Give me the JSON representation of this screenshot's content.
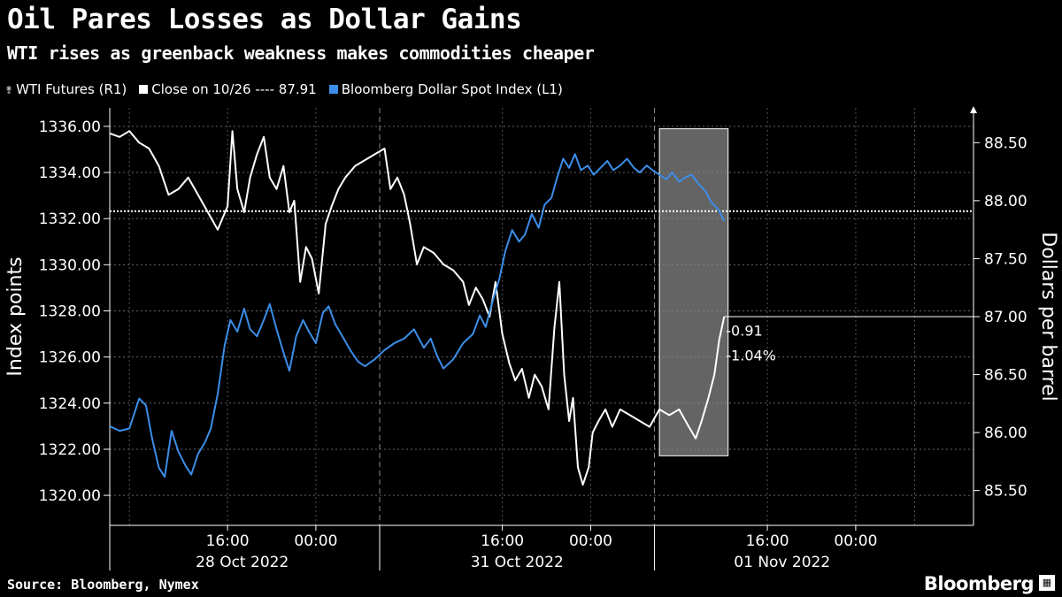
{
  "chart_data": {
    "type": "line",
    "title": "Oil Pares Losses as Dollar Gains",
    "subtitle": "WTI rises as greenback weakness makes commodities cheaper",
    "source": "Source: Bloomberg, Nymex",
    "brand": "Bloomberg",
    "legend": {
      "placement": "top-left",
      "entries": [
        {
          "label": "WTI Futures (R1)",
          "color": "#ffffff"
        },
        {
          "label": "Close on 10/26 ---- 87.91",
          "color": "#ffffff"
        },
        {
          "label": "Bloomberg Dollar Spot Index (L1)",
          "color": "#3b8ee8"
        }
      ]
    },
    "left_axis": {
      "label": "Index points",
      "ylim": [
        1318.7,
        1336.8
      ],
      "ticks": [
        "1336.00",
        "1334.00",
        "1332.00",
        "1330.00",
        "1328.00",
        "1326.00",
        "1324.00",
        "1322.00",
        "1320.00"
      ],
      "tick_values": [
        1336,
        1334,
        1332,
        1330,
        1328,
        1326,
        1324,
        1322,
        1320
      ]
    },
    "right_axis": {
      "label": "Dollars per barrel",
      "ylim": [
        85.2,
        88.8
      ],
      "ticks": [
        "88.50",
        "88.00",
        "87.50",
        "87.00",
        "86.50",
        "86.00",
        "85.50"
      ],
      "tick_values": [
        88.5,
        88.0,
        87.5,
        87.0,
        86.5,
        86.0,
        85.5
      ]
    },
    "x_axis": {
      "xlim": [
        0,
        88
      ],
      "tick_labels": [
        {
          "t": 12,
          "label": "16:00"
        },
        {
          "t": 21,
          "label": "00:00"
        },
        {
          "t": 40,
          "label": "16:00"
        },
        {
          "t": 49,
          "label": "00:00"
        },
        {
          "t": 67,
          "label": "16:00"
        },
        {
          "t": 76,
          "label": "00:00"
        }
      ],
      "day_labels": [
        {
          "t": 13.5,
          "label": "28 Oct 2022"
        },
        {
          "t": 41.5,
          "label": "31 Oct 2022"
        },
        {
          "t": 68.5,
          "label": "01 Nov 2022"
        }
      ],
      "day_separators": [
        27.5,
        55.5
      ],
      "grid_dashed_at": [
        2,
        12,
        21,
        27.5,
        40,
        49,
        55.5,
        67,
        76,
        82
      ]
    },
    "grid": true,
    "reference_line": {
      "axis": "right",
      "value": 87.91,
      "label": "Close on 10/26 ---- 87.91"
    },
    "highlight": {
      "t_start": 56,
      "t_end": 63,
      "y_top_right": 88.62,
      "y_bottom_right": 85.8
    },
    "annotations": [
      {
        "text": "-0.91",
        "at_right_value": 86.88
      },
      {
        "text": "-1.04%",
        "at_right_value": 86.67
      }
    ],
    "last_value_right": 87.0,
    "series": [
      {
        "name": "WTI Futures (R1)",
        "axis": "right",
        "color": "#ffffff",
        "points": [
          [
            0,
            88.58
          ],
          [
            1,
            88.55
          ],
          [
            2,
            88.6
          ],
          [
            3,
            88.5
          ],
          [
            4,
            88.45
          ],
          [
            5,
            88.3
          ],
          [
            6,
            88.05
          ],
          [
            7,
            88.1
          ],
          [
            8,
            88.2
          ],
          [
            9,
            88.05
          ],
          [
            10,
            87.9
          ],
          [
            11,
            87.75
          ],
          [
            12,
            87.95
          ],
          [
            12.5,
            88.6
          ],
          [
            13,
            88.1
          ],
          [
            13.7,
            87.9
          ],
          [
            14.3,
            88.2
          ],
          [
            15,
            88.4
          ],
          [
            15.7,
            88.55
          ],
          [
            16.3,
            88.2
          ],
          [
            17,
            88.1
          ],
          [
            17.7,
            88.3
          ],
          [
            18.3,
            87.9
          ],
          [
            18.8,
            88.0
          ],
          [
            19.4,
            87.3
          ],
          [
            20,
            87.6
          ],
          [
            20.6,
            87.5
          ],
          [
            21.3,
            87.2
          ],
          [
            22,
            87.8
          ],
          [
            22.6,
            87.95
          ],
          [
            23.3,
            88.1
          ],
          [
            24,
            88.2
          ],
          [
            25,
            88.3
          ],
          [
            26,
            88.35
          ],
          [
            27,
            88.4
          ],
          [
            28,
            88.45
          ],
          [
            28.6,
            88.1
          ],
          [
            29.3,
            88.2
          ],
          [
            30,
            88.05
          ],
          [
            30.6,
            87.8
          ],
          [
            31.3,
            87.45
          ],
          [
            32,
            87.6
          ],
          [
            33,
            87.55
          ],
          [
            34,
            87.45
          ],
          [
            35,
            87.4
          ],
          [
            36,
            87.3
          ],
          [
            36.6,
            87.1
          ],
          [
            37.3,
            87.25
          ],
          [
            38,
            87.15
          ],
          [
            38.7,
            87.0
          ],
          [
            39.3,
            87.3
          ],
          [
            40,
            86.85
          ],
          [
            40.7,
            86.6
          ],
          [
            41.3,
            86.45
          ],
          [
            42,
            86.55
          ],
          [
            42.7,
            86.3
          ],
          [
            43.3,
            86.5
          ],
          [
            44,
            86.4
          ],
          [
            44.7,
            86.2
          ],
          [
            45.3,
            86.9
          ],
          [
            45.8,
            87.3
          ],
          [
            46.3,
            86.5
          ],
          [
            46.8,
            86.1
          ],
          [
            47.2,
            86.3
          ],
          [
            47.7,
            85.7
          ],
          [
            48.2,
            85.55
          ],
          [
            48.8,
            85.7
          ],
          [
            49.2,
            86.0
          ],
          [
            49.8,
            86.1
          ],
          [
            50.5,
            86.2
          ],
          [
            51.2,
            86.05
          ],
          [
            52,
            86.2
          ],
          [
            53,
            86.15
          ],
          [
            54,
            86.1
          ],
          [
            55,
            86.05
          ],
          [
            56,
            86.2
          ],
          [
            57,
            86.15
          ],
          [
            58,
            86.2
          ],
          [
            59,
            86.05
          ],
          [
            59.7,
            85.95
          ],
          [
            60.3,
            86.1
          ],
          [
            61,
            86.3
          ],
          [
            61.6,
            86.5
          ],
          [
            62.1,
            86.8
          ],
          [
            62.6,
            87.0
          ]
        ]
      },
      {
        "name": "Bloomberg Dollar Spot Index (L1)",
        "axis": "left",
        "color": "#3b8ee8",
        "points": [
          [
            0,
            1323.0
          ],
          [
            1,
            1322.8
          ],
          [
            2,
            1322.9
          ],
          [
            3,
            1324.2
          ],
          [
            3.7,
            1323.9
          ],
          [
            4.3,
            1322.5
          ],
          [
            5,
            1321.2
          ],
          [
            5.6,
            1320.8
          ],
          [
            6.3,
            1322.8
          ],
          [
            7,
            1321.9
          ],
          [
            7.7,
            1321.3
          ],
          [
            8.3,
            1320.9
          ],
          [
            9,
            1321.8
          ],
          [
            9.7,
            1322.3
          ],
          [
            10.3,
            1322.9
          ],
          [
            11,
            1324.4
          ],
          [
            11.7,
            1326.5
          ],
          [
            12.3,
            1327.6
          ],
          [
            13,
            1327.1
          ],
          [
            13.7,
            1328.1
          ],
          [
            14.3,
            1327.2
          ],
          [
            15,
            1326.9
          ],
          [
            15.7,
            1327.6
          ],
          [
            16.3,
            1328.3
          ],
          [
            17,
            1327.2
          ],
          [
            17.7,
            1326.2
          ],
          [
            18.3,
            1325.4
          ],
          [
            19,
            1326.9
          ],
          [
            19.7,
            1327.6
          ],
          [
            20.3,
            1327.1
          ],
          [
            21,
            1326.6
          ],
          [
            21.7,
            1327.9
          ],
          [
            22.3,
            1328.2
          ],
          [
            23,
            1327.4
          ],
          [
            23.7,
            1326.9
          ],
          [
            24.5,
            1326.3
          ],
          [
            25.3,
            1325.8
          ],
          [
            26,
            1325.6
          ],
          [
            27,
            1325.9
          ],
          [
            28,
            1326.3
          ],
          [
            29,
            1326.6
          ],
          [
            30,
            1326.8
          ],
          [
            31,
            1327.2
          ],
          [
            32,
            1326.4
          ],
          [
            32.7,
            1326.8
          ],
          [
            33.4,
            1326.0
          ],
          [
            34,
            1325.5
          ],
          [
            35,
            1325.9
          ],
          [
            36,
            1326.6
          ],
          [
            37,
            1327.0
          ],
          [
            37.7,
            1327.8
          ],
          [
            38.3,
            1327.3
          ],
          [
            39,
            1328.4
          ],
          [
            39.7,
            1329.4
          ],
          [
            40.3,
            1330.6
          ],
          [
            41,
            1331.5
          ],
          [
            41.7,
            1331.0
          ],
          [
            42.3,
            1331.3
          ],
          [
            43,
            1332.2
          ],
          [
            43.7,
            1331.6
          ],
          [
            44.3,
            1332.6
          ],
          [
            45,
            1332.9
          ],
          [
            45.6,
            1333.8
          ],
          [
            46.2,
            1334.6
          ],
          [
            46.8,
            1334.2
          ],
          [
            47.4,
            1334.8
          ],
          [
            48,
            1334.1
          ],
          [
            48.7,
            1334.3
          ],
          [
            49.3,
            1333.9
          ],
          [
            50,
            1334.2
          ],
          [
            50.7,
            1334.5
          ],
          [
            51.3,
            1334.1
          ],
          [
            52,
            1334.3
          ],
          [
            52.7,
            1334.6
          ],
          [
            53.4,
            1334.2
          ],
          [
            54,
            1334.0
          ],
          [
            54.7,
            1334.3
          ],
          [
            55.3,
            1334.1
          ],
          [
            56,
            1333.9
          ],
          [
            56.7,
            1333.7
          ],
          [
            57.3,
            1334.0
          ],
          [
            58,
            1333.6
          ],
          [
            58.7,
            1333.8
          ],
          [
            59.3,
            1333.9
          ],
          [
            60,
            1333.5
          ],
          [
            60.7,
            1333.2
          ],
          [
            61.3,
            1332.7
          ],
          [
            62,
            1332.4
          ],
          [
            62.6,
            1331.9
          ]
        ]
      }
    ]
  }
}
